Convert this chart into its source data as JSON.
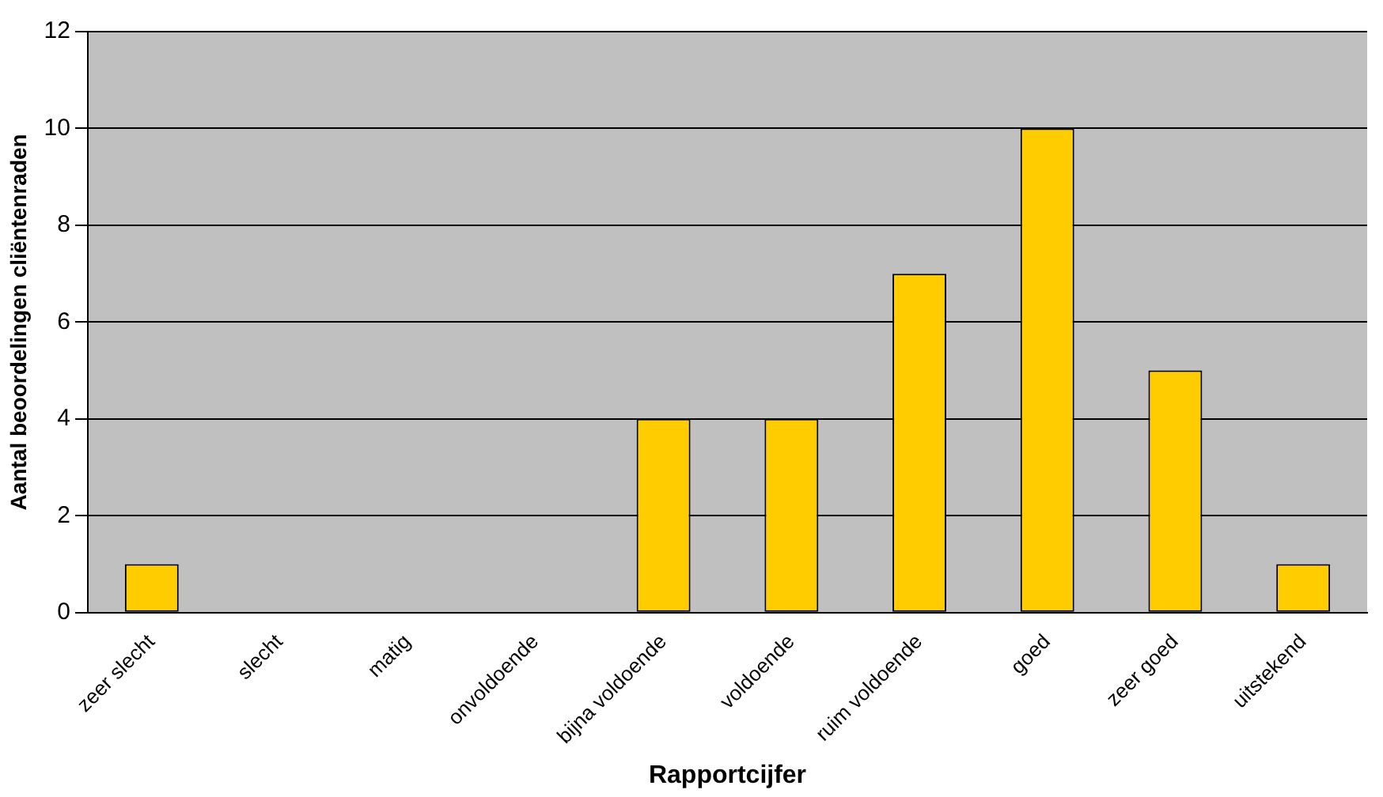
{
  "chart_data": {
    "type": "bar",
    "xlabel": "Rapportcijfer",
    "ylabel": "Aantal beoordelingen cliëntenraden",
    "categories": [
      "zeer slecht",
      "slecht",
      "matig",
      "onvoldoende",
      "bijna voldoende",
      "voldoende",
      "ruim voldoende",
      "goed",
      "zeer goed",
      "uitstekend"
    ],
    "values": [
      1,
      0,
      0,
      0,
      4,
      4,
      7,
      10,
      5,
      1
    ],
    "color": "#ffcc00",
    "ylim": [
      0,
      12
    ],
    "yticks": [
      0,
      2,
      4,
      6,
      8,
      10,
      12
    ],
    "grid": "y",
    "legend": false
  }
}
